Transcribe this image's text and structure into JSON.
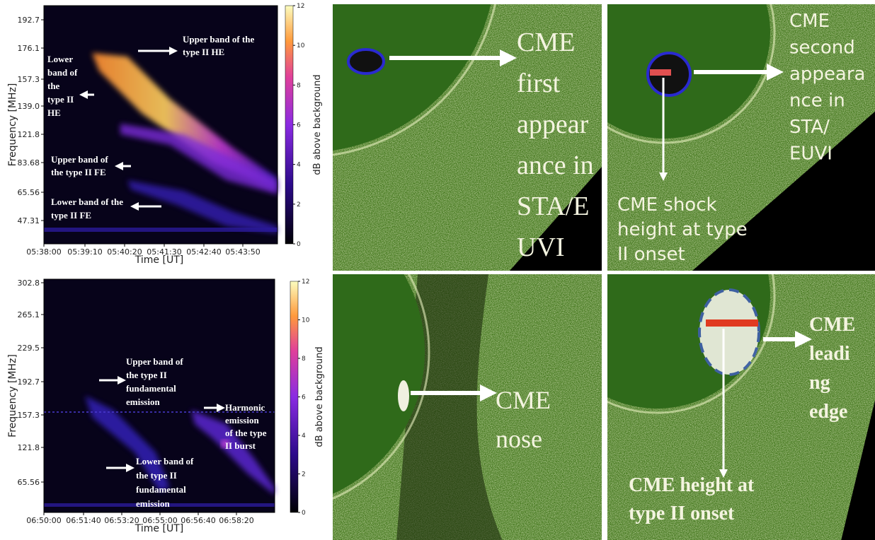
{
  "spectrograms": [
    {
      "ylabel": "Frequency [MHz]",
      "xlabel": "Time [UT]",
      "yticks": [
        "192.7",
        "176.1",
        "157.3",
        "139.0",
        "121.8",
        "83.68",
        "65.56",
        "47.31"
      ],
      "xticks": [
        "05:38:00",
        "05:39:10",
        "05:40:20",
        "05:41:30",
        "05:42:40",
        "05:43:50"
      ],
      "colorbar": {
        "label": "dB above background",
        "lim": [
          0,
          12
        ],
        "ticks": [
          0,
          2,
          4,
          6,
          8,
          10,
          12
        ]
      },
      "annotations": [
        {
          "lines": [
            "Upper band of the",
            "type II HE"
          ]
        },
        {
          "lines": [
            "Lower",
            "band of",
            "the",
            "type II",
            "HE"
          ]
        },
        {
          "lines": [
            "Upper band of",
            "the type II FE"
          ]
        },
        {
          "lines": [
            "Lower band of the",
            "type II FE"
          ]
        }
      ]
    },
    {
      "ylabel": "Frequency [MHz]",
      "xlabel": "Time [UT]",
      "yticks": [
        "302.8",
        "265.1",
        "229.5",
        "192.7",
        "157.3",
        "121.8",
        "65.56"
      ],
      "xticks": [
        "06:50:00",
        "06:51:40",
        "06:53:20",
        "06:55:00",
        "06:56:40",
        "06:58:20"
      ],
      "colorbar": {
        "label": "dB above background",
        "lim": [
          0,
          12
        ],
        "ticks": [
          0,
          2,
          4,
          6,
          8,
          10,
          12
        ]
      },
      "annotations": [
        {
          "lines": [
            "Upper band of",
            "the type II",
            "fundamental",
            "emission"
          ]
        },
        {
          "lines": [
            "Harmonic",
            "emission",
            "of the type",
            "II burst"
          ]
        },
        {
          "lines": [
            "Lower band of",
            "the type II",
            "fundamental",
            "emission"
          ]
        }
      ]
    }
  ],
  "images": [
    {
      "annotations": [
        {
          "lines": [
            "CME",
            "first",
            "appear",
            "ance in",
            "STA/E",
            "UVI"
          ]
        }
      ]
    },
    {
      "annotations": [
        {
          "lines": [
            "CME",
            "second",
            "appeara",
            "nce in",
            "STA/",
            "EUVI"
          ]
        },
        {
          "lines": [
            "CME shock",
            "height at type",
            "II onset"
          ]
        }
      ]
    },
    {
      "annotations": [
        {
          "lines": [
            "CME",
            "nose"
          ]
        }
      ]
    },
    {
      "annotations": [
        {
          "lines": [
            "CME",
            "leadi",
            "ng",
            "edge"
          ]
        },
        {
          "lines": [
            "CME height at",
            "type II onset"
          ]
        }
      ]
    }
  ]
}
